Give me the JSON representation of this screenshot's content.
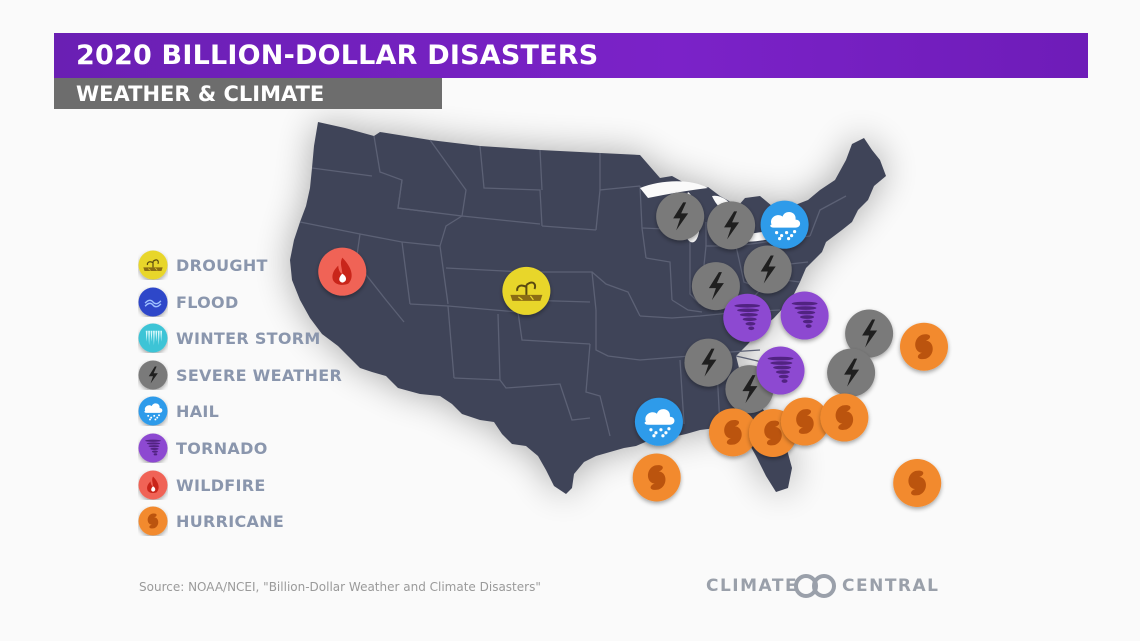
{
  "header": {
    "title": "2020 BILLION-DOLLAR DISASTERS",
    "subtitle": "WEATHER & CLIMATE"
  },
  "legend": {
    "items": [
      {
        "key": "drought",
        "label": "DROUGHT",
        "color": "#e8d62c",
        "icon": "drought-icon"
      },
      {
        "key": "flood",
        "label": "FLOOD",
        "color": "#2d46c9",
        "icon": "flood-wave-icon"
      },
      {
        "key": "winter_storm",
        "label": "WINTER STORM",
        "color": "#3cc4d6",
        "icon": "icicles-icon"
      },
      {
        "key": "severe_weather",
        "label": "SEVERE WEATHER",
        "color": "#7a7a7a",
        "icon": "lightning-bolt-icon"
      },
      {
        "key": "hail",
        "label": "HAIL",
        "color": "#2f9bea",
        "icon": "hail-cloud-icon"
      },
      {
        "key": "tornado",
        "label": "TORNADO",
        "color": "#8d48d1",
        "icon": "tornado-icon"
      },
      {
        "key": "wildfire",
        "label": "WILDFIRE",
        "color": "#f06456",
        "icon": "flame-icon"
      },
      {
        "key": "hurricane",
        "label": "HURRICANE",
        "color": "#f28a2e",
        "icon": "hurricane-icon"
      }
    ]
  },
  "map": {
    "land_color": "#3f4458",
    "border_color": "#5c6175",
    "markers": [
      {
        "type": "wildfire",
        "lon": -121.2,
        "lat": 40.0
      },
      {
        "type": "drought",
        "lon": -107.5,
        "lat": 38.2
      },
      {
        "type": "severe_weather",
        "lon": -96.4,
        "lat": 42.3
      },
      {
        "type": "severe_weather",
        "lon": -92.6,
        "lat": 41.8
      },
      {
        "type": "hail",
        "lon": -88.6,
        "lat": 41.9
      },
      {
        "type": "severe_weather",
        "lon": -93.8,
        "lat": 38.3
      },
      {
        "type": "severe_weather",
        "lon": -90.0,
        "lat": 39.3
      },
      {
        "type": "tornado",
        "lon": -91.6,
        "lat": 36.5
      },
      {
        "type": "tornado",
        "lon": -87.5,
        "lat": 36.7
      },
      {
        "type": "severe_weather",
        "lon": -83.0,
        "lat": 35.8
      },
      {
        "type": "hurricane",
        "lon": -79.2,
        "lat": 35.2
      },
      {
        "type": "severe_weather",
        "lon": -94.4,
        "lat": 33.9
      },
      {
        "type": "severe_weather",
        "lon": -91.6,
        "lat": 32.4
      },
      {
        "type": "tornado",
        "lon": -89.4,
        "lat": 33.5
      },
      {
        "type": "severe_weather",
        "lon": -84.5,
        "lat": 33.5
      },
      {
        "type": "hail",
        "lon": -97.8,
        "lat": 30.5
      },
      {
        "type": "hurricane",
        "lon": -92.8,
        "lat": 29.9
      },
      {
        "type": "hurricane",
        "lon": -90.1,
        "lat": 29.9
      },
      {
        "type": "hurricane",
        "lon": -87.9,
        "lat": 30.6
      },
      {
        "type": "hurricane",
        "lon": -85.2,
        "lat": 30.9
      },
      {
        "type": "hurricane",
        "lon": -97.9,
        "lat": 27.3
      },
      {
        "type": "hurricane",
        "lon": -80.7,
        "lat": 27.3
      }
    ]
  },
  "footer": {
    "source": "Source: NOAA/NCEI, \"Billion-Dollar Weather and Climate Disasters\"",
    "brand_left": "CLIMATE",
    "brand_right": "CENTRAL"
  }
}
